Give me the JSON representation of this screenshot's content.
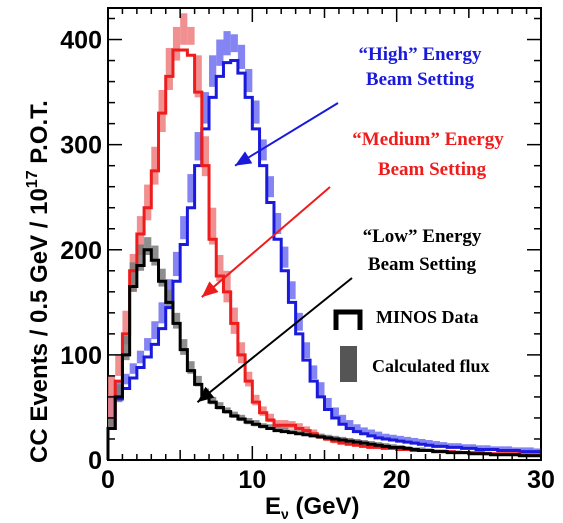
{
  "chart_data": {
    "type": "line",
    "xlabel": "E",
    "xlabel_sub": "ν",
    "xlabel_unit": " (GeV)",
    "ylabel_pre": "CC Events / 0.5 GeV / 10",
    "ylabel_sup": "17",
    "ylabel_post": " P.O.T.",
    "xlim": [
      0,
      30
    ],
    "ylim": [
      0,
      430
    ],
    "xticks": [
      "0",
      "10",
      "20",
      "30"
    ],
    "yticks": [
      "0",
      "100",
      "200",
      "300",
      "400"
    ],
    "bin_width": 0.5,
    "series": [
      {
        "color": "#1a1adc",
        "band_color": "#6f6ff0",
        "x": [
          0.25,
          0.75,
          1.25,
          1.75,
          2.25,
          2.75,
          3.25,
          3.75,
          4.25,
          4.75,
          5.25,
          5.75,
          6.25,
          6.75,
          7.25,
          7.75,
          8.25,
          8.75,
          9.25,
          9.75,
          10.25,
          10.75,
          11.25,
          11.75,
          12.25,
          12.75,
          13.25,
          13.75,
          14.25,
          14.75,
          15.25,
          15.75,
          16.25,
          16.75,
          17.25,
          17.75,
          18.25,
          18.75,
          19.25,
          19.75,
          20.25,
          20.75,
          21.25,
          21.75,
          22.25,
          22.75,
          23.25,
          23.75,
          24.25,
          24.75,
          25.25,
          25.75,
          26.25,
          26.75,
          27.25,
          27.75,
          28.25,
          28.75,
          29.25,
          29.75
        ],
        "values": [
          30,
          58,
          68,
          78,
          88,
          98,
          110,
          125,
          145,
          170,
          205,
          240,
          280,
          315,
          345,
          365,
          378,
          380,
          368,
          345,
          315,
          280,
          245,
          210,
          180,
          150,
          120,
          95,
          75,
          60,
          48,
          40,
          34,
          30,
          27,
          25,
          23,
          21,
          20,
          19,
          18,
          17,
          16,
          15,
          14,
          13,
          13,
          12,
          12,
          11,
          11,
          10,
          10,
          10,
          9,
          9,
          9,
          8,
          8,
          8
        ],
        "band": [
          [
            32,
            62
          ],
          [
            60,
            75
          ],
          [
            72,
            82
          ],
          [
            82,
            92
          ],
          [
            92,
            104
          ],
          [
            104,
            116
          ],
          [
            115,
            132
          ],
          [
            130,
            150
          ],
          [
            150,
            172
          ],
          [
            175,
            198
          ],
          [
            210,
            232
          ],
          [
            245,
            272
          ],
          [
            285,
            312
          ],
          [
            320,
            350
          ],
          [
            355,
            385
          ],
          [
            375,
            400
          ],
          [
            385,
            408
          ],
          [
            388,
            405
          ],
          [
            372,
            395
          ],
          [
            350,
            372
          ],
          [
            320,
            342
          ],
          [
            285,
            305
          ],
          [
            250,
            270
          ],
          [
            215,
            235
          ],
          [
            183,
            203
          ],
          [
            153,
            170
          ],
          [
            123,
            140
          ],
          [
            97,
            112
          ],
          [
            77,
            90
          ],
          [
            61,
            74
          ],
          [
            49,
            59
          ],
          [
            41,
            50
          ],
          [
            35,
            43
          ],
          [
            31,
            38
          ],
          [
            28,
            34
          ],
          [
            26,
            31
          ],
          [
            24,
            29
          ],
          [
            22,
            27
          ],
          [
            21,
            25
          ],
          [
            20,
            24
          ],
          [
            19,
            23
          ],
          [
            18,
            22
          ],
          [
            17,
            21
          ],
          [
            16,
            20
          ],
          [
            15,
            19
          ],
          [
            14,
            18
          ],
          [
            14,
            17
          ],
          [
            13,
            16
          ],
          [
            13,
            16
          ],
          [
            12,
            15
          ],
          [
            12,
            15
          ],
          [
            11,
            14
          ],
          [
            11,
            14
          ],
          [
            11,
            13
          ],
          [
            10,
            13
          ],
          [
            10,
            13
          ],
          [
            10,
            12
          ],
          [
            9,
            12
          ],
          [
            9,
            12
          ],
          [
            9,
            11
          ]
        ]
      },
      {
        "color": "#ee1c1c",
        "band_color": "#ef7c7c",
        "x": [
          0.25,
          0.75,
          1.25,
          1.75,
          2.25,
          2.75,
          3.25,
          3.75,
          4.25,
          4.75,
          5.25,
          5.75,
          6.25,
          6.75,
          7.25,
          7.75,
          8.25,
          8.75,
          9.25,
          9.75,
          10.25,
          10.75,
          11.25,
          11.75,
          12.25,
          12.75,
          13.25,
          13.75,
          14.25,
          14.75,
          15.25,
          15.75,
          16.25,
          16.75,
          17.25,
          17.75,
          18.25,
          18.75,
          19.25,
          19.75,
          20.25,
          20.75,
          21.25,
          21.75,
          22.25,
          22.75,
          23.25,
          23.75,
          24.25,
          24.75,
          25.25,
          25.75,
          26.25,
          26.75,
          27.25,
          27.75,
          28.25,
          28.75,
          29.25,
          29.75
        ],
        "values": [
          30,
          75,
          120,
          180,
          215,
          240,
          275,
          330,
          365,
          390,
          390,
          385,
          350,
          280,
          210,
          175,
          160,
          130,
          100,
          75,
          55,
          45,
          38,
          33,
          33,
          33,
          30,
          28,
          25,
          22,
          20,
          18,
          16,
          15,
          14,
          13,
          12,
          12,
          11,
          11,
          10,
          10,
          9,
          9,
          9,
          8,
          8,
          8,
          7,
          7,
          7,
          7,
          6,
          6,
          6,
          6,
          6,
          5,
          5,
          5
        ],
        "band": [
          [
            32,
            80
          ],
          [
            80,
            100
          ],
          [
            110,
            142
          ],
          [
            160,
            196
          ],
          [
            195,
            232
          ],
          [
            228,
            262
          ],
          [
            262,
            298
          ],
          [
            312,
            352
          ],
          [
            352,
            392
          ],
          [
            380,
            412
          ],
          [
            395,
            425
          ],
          [
            395,
            412
          ],
          [
            345,
            385
          ],
          [
            270,
            308
          ],
          [
            205,
            240
          ],
          [
            170,
            195
          ],
          [
            150,
            180
          ],
          [
            120,
            145
          ],
          [
            92,
            112
          ],
          [
            70,
            84
          ],
          [
            52,
            62
          ],
          [
            42,
            51
          ],
          [
            36,
            44
          ],
          [
            31,
            38
          ],
          [
            30,
            38
          ],
          [
            30,
            37
          ],
          [
            28,
            35
          ],
          [
            26,
            32
          ],
          [
            23,
            29
          ],
          [
            20,
            25
          ],
          [
            18,
            23
          ],
          [
            16,
            21
          ],
          [
            15,
            19
          ],
          [
            14,
            17
          ],
          [
            13,
            16
          ],
          [
            12,
            15
          ],
          [
            11,
            14
          ],
          [
            11,
            13
          ],
          [
            10,
            13
          ],
          [
            10,
            12
          ],
          [
            9,
            12
          ],
          [
            9,
            11
          ],
          [
            8,
            11
          ],
          [
            8,
            10
          ],
          [
            8,
            10
          ],
          [
            7,
            10
          ],
          [
            7,
            9
          ],
          [
            7,
            9
          ],
          [
            6,
            9
          ],
          [
            6,
            8
          ],
          [
            6,
            8
          ],
          [
            6,
            8
          ],
          [
            5,
            8
          ],
          [
            5,
            7
          ],
          [
            5,
            7
          ],
          [
            5,
            7
          ],
          [
            5,
            7
          ],
          [
            4,
            6
          ],
          [
            4,
            6
          ],
          [
            4,
            6
          ]
        ]
      },
      {
        "color": "#000000",
        "band_color": "#7a7a7a",
        "x": [
          0.25,
          0.75,
          1.25,
          1.75,
          2.25,
          2.75,
          3.25,
          3.75,
          4.25,
          4.75,
          5.25,
          5.75,
          6.25,
          6.75,
          7.25,
          7.75,
          8.25,
          8.75,
          9.25,
          9.75,
          10.25,
          10.75,
          11.25,
          11.75,
          12.25,
          12.75,
          13.25,
          13.75,
          14.25,
          14.75,
          15.25,
          15.75,
          16.25,
          16.75,
          17.25,
          17.75,
          18.25,
          18.75,
          19.25,
          19.75,
          20.25,
          20.75,
          21.25,
          21.75,
          22.25,
          22.75,
          23.25,
          23.75,
          24.25,
          24.75,
          25.25,
          25.75,
          26.25,
          26.75,
          27.25,
          27.75,
          28.25,
          28.75,
          29.25,
          29.75
        ],
        "values": [
          30,
          60,
          100,
          165,
          185,
          200,
          190,
          170,
          150,
          130,
          105,
          85,
          72,
          62,
          55,
          50,
          46,
          42,
          39,
          36,
          34,
          32,
          30,
          28,
          27,
          26,
          25,
          24,
          23,
          22,
          21,
          20,
          19,
          18,
          17,
          16,
          15,
          14,
          13,
          12,
          12,
          11,
          10,
          9,
          9,
          8,
          8,
          7,
          7,
          7,
          6,
          6,
          6,
          5,
          5,
          5,
          5,
          4,
          4,
          4
        ],
        "band": [
          [
            30,
            40
          ],
          [
            55,
            72
          ],
          [
            95,
            118
          ],
          [
            160,
            188
          ],
          [
            180,
            205
          ],
          [
            195,
            212
          ],
          [
            185,
            204
          ],
          [
            165,
            182
          ],
          [
            145,
            162
          ],
          [
            125,
            140
          ],
          [
            100,
            115
          ],
          [
            82,
            94
          ],
          [
            70,
            80
          ],
          [
            60,
            68
          ],
          [
            53,
            60
          ],
          [
            48,
            55
          ],
          [
            44,
            50
          ],
          [
            40,
            46
          ],
          [
            37,
            43
          ],
          [
            34,
            40
          ],
          [
            32,
            38
          ],
          [
            30,
            35
          ],
          [
            29,
            34
          ],
          [
            27,
            32
          ],
          [
            26,
            31
          ],
          [
            25,
            29
          ],
          [
            24,
            28
          ],
          [
            23,
            27
          ],
          [
            22,
            26
          ],
          [
            21,
            25
          ],
          [
            20,
            24
          ],
          [
            19,
            23
          ],
          [
            18,
            22
          ],
          [
            17,
            21
          ],
          [
            16,
            20
          ],
          [
            15,
            19
          ],
          [
            14,
            18
          ],
          [
            13,
            17
          ],
          [
            12,
            16
          ],
          [
            11,
            15
          ],
          [
            11,
            14
          ],
          [
            10,
            13
          ],
          [
            9,
            12
          ],
          [
            9,
            12
          ],
          [
            8,
            11
          ],
          [
            8,
            10
          ],
          [
            7,
            10
          ],
          [
            7,
            9
          ],
          [
            6,
            9
          ],
          [
            6,
            8
          ],
          [
            6,
            8
          ],
          [
            5,
            8
          ],
          [
            5,
            7
          ],
          [
            5,
            7
          ],
          [
            4,
            6
          ],
          [
            4,
            6
          ],
          [
            4,
            6
          ],
          [
            4,
            5
          ],
          [
            3,
            5
          ],
          [
            3,
            5
          ]
        ]
      }
    ],
    "annotations": [
      {
        "lines": [
          "“High” Energy",
          "Beam Setting"
        ],
        "color": "#1a1adc",
        "arrow_to": [
          8.8,
          280
        ]
      },
      {
        "lines": [
          "“Medium” Energy",
          "Beam Setting"
        ],
        "color": "#ee1c1c",
        "arrow_to": [
          6.5,
          155
        ]
      },
      {
        "lines": [
          "“Low” Energy",
          "Beam Setting"
        ],
        "color": "#000000",
        "arrow_to": [
          6.2,
          55
        ]
      }
    ],
    "legend": [
      {
        "label": "MINOS Data",
        "marker": "step"
      },
      {
        "label": "Calculated flux",
        "marker": "box"
      }
    ]
  }
}
